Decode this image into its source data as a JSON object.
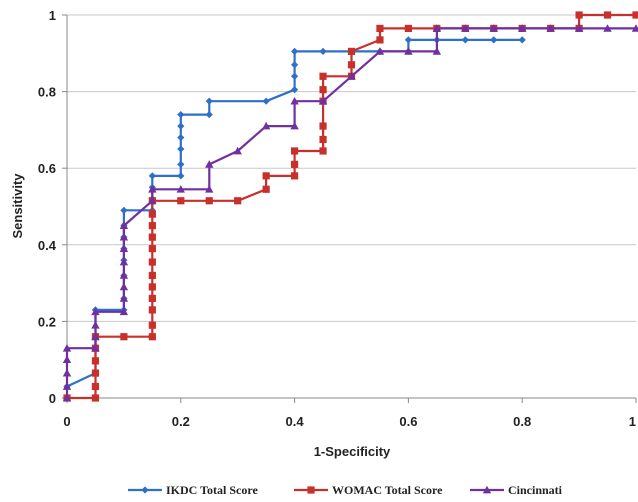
{
  "chart_data": {
    "type": "line",
    "title": "",
    "xlabel": "1-Specificity",
    "ylabel": "Sensitivity",
    "xlim": [
      0,
      1
    ],
    "ylim": [
      0,
      1
    ],
    "xticks": [
      0,
      0.2,
      0.4,
      0.6,
      0.8,
      1
    ],
    "yticks": [
      0,
      0.2,
      0.4,
      0.6,
      0.8,
      1
    ],
    "xtick_labels": [
      "0",
      "0.2",
      "0.4",
      "0.6",
      "0.8",
      "1"
    ],
    "ytick_labels": [
      "0",
      "0.2",
      "0.4",
      "0.6",
      "0.8",
      "1"
    ],
    "grid": "horizontal",
    "legend_position": "bottom",
    "series": [
      {
        "name": "IKDC Total Score",
        "color": "#2e6fc9",
        "marker": "diamond",
        "points": [
          [
            0,
            0.03
          ],
          [
            0.05,
            0.065
          ],
          [
            0.05,
            0.16
          ],
          [
            0.05,
            0.23
          ],
          [
            0.1,
            0.23
          ],
          [
            0.1,
            0.26
          ],
          [
            0.1,
            0.32
          ],
          [
            0.1,
            0.36
          ],
          [
            0.1,
            0.39
          ],
          [
            0.1,
            0.42
          ],
          [
            0.1,
            0.45
          ],
          [
            0.1,
            0.49
          ],
          [
            0.15,
            0.49
          ],
          [
            0.15,
            0.52
          ],
          [
            0.15,
            0.55
          ],
          [
            0.15,
            0.58
          ],
          [
            0.2,
            0.58
          ],
          [
            0.2,
            0.61
          ],
          [
            0.2,
            0.65
          ],
          [
            0.2,
            0.68
          ],
          [
            0.2,
            0.71
          ],
          [
            0.2,
            0.74
          ],
          [
            0.25,
            0.74
          ],
          [
            0.25,
            0.775
          ],
          [
            0.35,
            0.775
          ],
          [
            0.4,
            0.805
          ],
          [
            0.4,
            0.84
          ],
          [
            0.4,
            0.87
          ],
          [
            0.4,
            0.905
          ],
          [
            0.45,
            0.905
          ],
          [
            0.5,
            0.905
          ],
          [
            0.55,
            0.905
          ],
          [
            0.6,
            0.905
          ],
          [
            0.6,
            0.935
          ],
          [
            0.65,
            0.935
          ],
          [
            0.7,
            0.935
          ],
          [
            0.75,
            0.935
          ],
          [
            0.8,
            0.935
          ]
        ]
      },
      {
        "name": "WOMAC Total Score",
        "color": "#c8302c",
        "marker": "square",
        "points": [
          [
            0,
            0
          ],
          [
            0.05,
            0
          ],
          [
            0.05,
            0.03
          ],
          [
            0.05,
            0.065
          ],
          [
            0.05,
            0.097
          ],
          [
            0.05,
            0.13
          ],
          [
            0.05,
            0.16
          ],
          [
            0.1,
            0.16
          ],
          [
            0.15,
            0.16
          ],
          [
            0.15,
            0.19
          ],
          [
            0.15,
            0.23
          ],
          [
            0.15,
            0.26
          ],
          [
            0.15,
            0.29
          ],
          [
            0.15,
            0.32
          ],
          [
            0.15,
            0.355
          ],
          [
            0.15,
            0.39
          ],
          [
            0.15,
            0.42
          ],
          [
            0.15,
            0.45
          ],
          [
            0.15,
            0.48
          ],
          [
            0.15,
            0.515
          ],
          [
            0.2,
            0.515
          ],
          [
            0.25,
            0.515
          ],
          [
            0.3,
            0.515
          ],
          [
            0.35,
            0.545
          ],
          [
            0.35,
            0.58
          ],
          [
            0.4,
            0.58
          ],
          [
            0.4,
            0.61
          ],
          [
            0.4,
            0.645
          ],
          [
            0.45,
            0.645
          ],
          [
            0.45,
            0.675
          ],
          [
            0.45,
            0.71
          ],
          [
            0.45,
            0.775
          ],
          [
            0.45,
            0.805
          ],
          [
            0.45,
            0.84
          ],
          [
            0.5,
            0.84
          ],
          [
            0.5,
            0.87
          ],
          [
            0.5,
            0.905
          ],
          [
            0.55,
            0.935
          ],
          [
            0.55,
            0.965
          ],
          [
            0.6,
            0.965
          ],
          [
            0.65,
            0.965
          ],
          [
            0.7,
            0.965
          ],
          [
            0.75,
            0.965
          ],
          [
            0.8,
            0.965
          ],
          [
            0.85,
            0.965
          ],
          [
            0.9,
            0.965
          ],
          [
            0.9,
            1
          ],
          [
            0.95,
            1
          ],
          [
            1,
            1
          ]
        ]
      },
      {
        "name": "Cincinnati",
        "color": "#7030a0",
        "marker": "triangle",
        "points": [
          [
            0,
            0
          ],
          [
            0,
            0.03
          ],
          [
            0,
            0.065
          ],
          [
            0,
            0.1
          ],
          [
            0,
            0.13
          ],
          [
            0.05,
            0.13
          ],
          [
            0.05,
            0.16
          ],
          [
            0.05,
            0.19
          ],
          [
            0.05,
            0.225
          ],
          [
            0.1,
            0.225
          ],
          [
            0.1,
            0.26
          ],
          [
            0.1,
            0.29
          ],
          [
            0.1,
            0.32
          ],
          [
            0.1,
            0.355
          ],
          [
            0.1,
            0.39
          ],
          [
            0.1,
            0.42
          ],
          [
            0.1,
            0.45
          ],
          [
            0.15,
            0.515
          ],
          [
            0.15,
            0.545
          ],
          [
            0.2,
            0.545
          ],
          [
            0.25,
            0.545
          ],
          [
            0.25,
            0.61
          ],
          [
            0.3,
            0.645
          ],
          [
            0.35,
            0.71
          ],
          [
            0.4,
            0.71
          ],
          [
            0.4,
            0.775
          ],
          [
            0.45,
            0.775
          ],
          [
            0.5,
            0.84
          ],
          [
            0.55,
            0.905
          ],
          [
            0.6,
            0.905
          ],
          [
            0.65,
            0.905
          ],
          [
            0.65,
            0.965
          ],
          [
            0.7,
            0.965
          ],
          [
            0.75,
            0.965
          ],
          [
            0.8,
            0.965
          ],
          [
            0.85,
            0.965
          ],
          [
            0.9,
            0.965
          ],
          [
            0.95,
            0.965
          ],
          [
            1,
            0.965
          ]
        ]
      }
    ]
  }
}
